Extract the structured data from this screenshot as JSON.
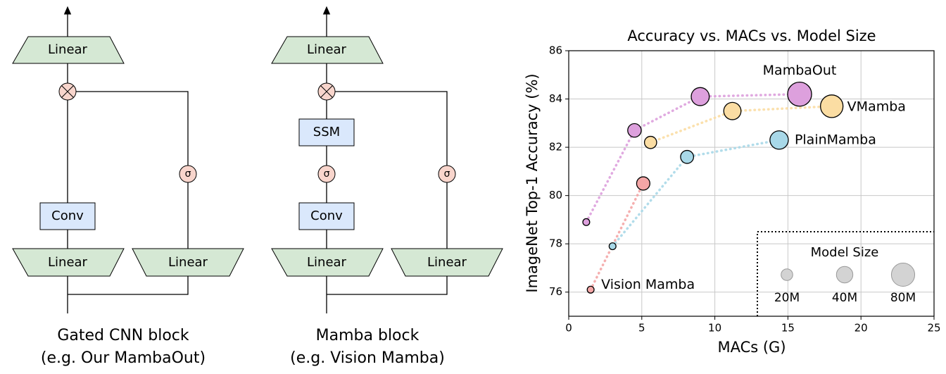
{
  "diagrams": [
    {
      "top": "Linear",
      "conv": "Conv",
      "gate": "σ",
      "bottom_left": "Linear",
      "bottom_right": "Linear",
      "caption": [
        "Gated CNN block",
        "(e.g. Our MambaOut)"
      ]
    },
    {
      "top": "Linear",
      "ssm": "SSM",
      "act": "σ",
      "conv": "Conv",
      "gate": "σ",
      "bottom_left": "Linear",
      "bottom_right": "Linear",
      "caption": [
        "Mamba block",
        "(e.g. Vision Mamba)"
      ]
    }
  ],
  "chart_data": {
    "type": "scatter",
    "title": "Accuracy vs. MACs vs. Model Size",
    "x_label": "MACs (G)",
    "y_label": "ImageNet Top-1 Accuracy (%)",
    "xlim": [
      0,
      25
    ],
    "xticks": [
      0,
      5,
      10,
      15,
      20,
      25
    ],
    "ylim": [
      75,
      86
    ],
    "yticks": [
      76,
      78,
      80,
      82,
      84,
      86
    ],
    "grid": true,
    "series": [
      {
        "name": "MambaOut",
        "color": "#dda0dd",
        "x": [
          1.2,
          4.5,
          9.0,
          15.8
        ],
        "values": [
          78.9,
          82.7,
          84.1,
          84.2
        ],
        "sizes": [
          7,
          27,
          48,
          85
        ]
      },
      {
        "name": "VMamba",
        "color": "#fbdda3",
        "x": [
          5.6,
          11.2,
          18.0
        ],
        "values": [
          82.2,
          83.5,
          83.7
        ],
        "sizes": [
          22,
          44,
          75
        ]
      },
      {
        "name": "PlainMamba",
        "color": "#a8d8e8",
        "x": [
          3.0,
          8.1,
          14.4
        ],
        "values": [
          77.9,
          81.6,
          82.3
        ],
        "sizes": [
          7,
          25,
          50
        ]
      },
      {
        "name": "Vision Mamba",
        "color": "#f4a6a6",
        "x": [
          1.5,
          5.1
        ],
        "values": [
          76.1,
          80.5
        ],
        "sizes": [
          7,
          26
        ]
      }
    ],
    "size_legend": {
      "title": "Model Size",
      "sizes": [
        {
          "value": 20,
          "label": "20M"
        },
        {
          "value": 40,
          "label": "40M"
        },
        {
          "value": 80,
          "label": "80M"
        }
      ]
    }
  }
}
